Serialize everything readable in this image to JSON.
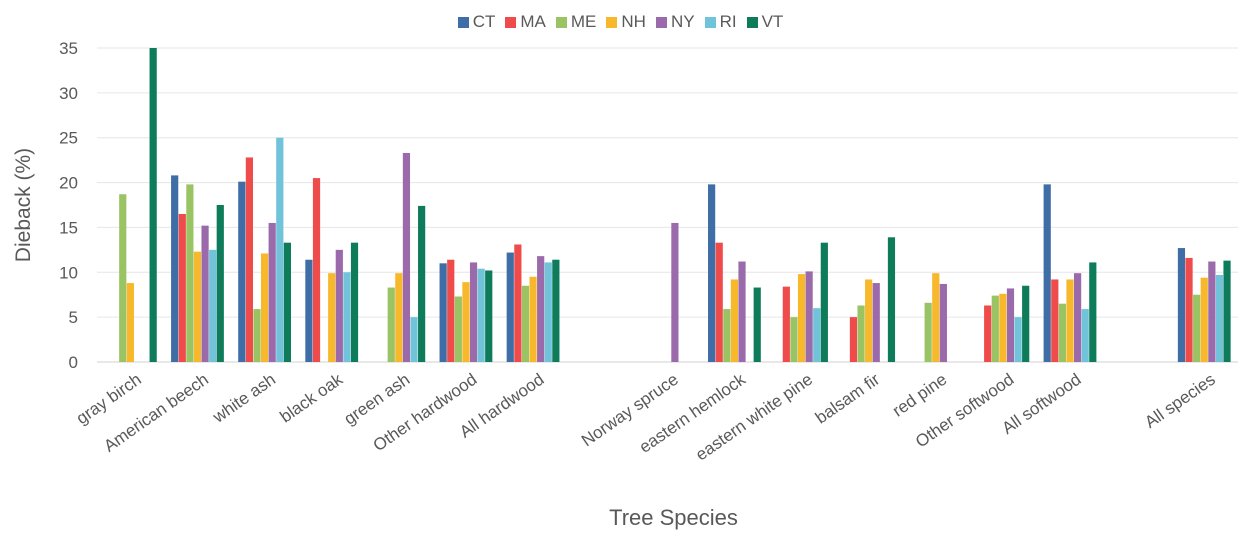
{
  "chart_data": {
    "type": "bar",
    "title": "",
    "xlabel": "Tree Species",
    "ylabel": "Dieback (%)",
    "ylim": [
      0,
      35
    ],
    "yticks": [
      "0",
      "5",
      "10",
      "15",
      "20",
      "25",
      "30",
      "35"
    ],
    "grid": true,
    "legend_position": "top",
    "categories": [
      "gray birch",
      "American beech",
      "white ash",
      "black oak",
      "green ash",
      "Other hardwood",
      "All hardwood",
      "",
      "Norway spruce",
      "eastern hemlock",
      "eastern white pine",
      "balsam fir",
      "red pine",
      "Other softwood",
      "All softwood",
      "",
      "All species"
    ],
    "series": [
      {
        "name": "CT",
        "color": "#3e6ea5",
        "values": [
          null,
          20.8,
          20.1,
          11.4,
          null,
          11.0,
          12.2,
          null,
          null,
          19.8,
          null,
          null,
          null,
          null,
          19.8,
          null,
          12.7
        ]
      },
      {
        "name": "MA",
        "color": "#ef4b4b",
        "values": [
          null,
          16.5,
          22.8,
          20.5,
          null,
          11.4,
          13.1,
          null,
          null,
          13.3,
          8.4,
          5.0,
          null,
          6.3,
          9.2,
          null,
          11.6
        ]
      },
      {
        "name": "ME",
        "color": "#9ac464",
        "values": [
          18.7,
          19.8,
          5.9,
          null,
          8.3,
          7.3,
          8.5,
          null,
          null,
          5.9,
          5.0,
          6.3,
          6.6,
          7.4,
          6.5,
          null,
          7.5
        ]
      },
      {
        "name": "NH",
        "color": "#f7b82c",
        "values": [
          8.8,
          12.3,
          12.1,
          9.9,
          9.9,
          8.9,
          9.5,
          null,
          null,
          9.2,
          9.8,
          9.2,
          9.9,
          7.6,
          9.2,
          null,
          9.4
        ]
      },
      {
        "name": "NY",
        "color": "#9b6aab",
        "values": [
          null,
          15.2,
          15.5,
          12.5,
          23.3,
          11.1,
          11.8,
          null,
          15.5,
          11.2,
          10.1,
          8.8,
          8.7,
          8.2,
          9.9,
          null,
          11.2
        ]
      },
      {
        "name": "RI",
        "color": "#71c3da",
        "values": [
          null,
          12.5,
          25.0,
          10.0,
          5.0,
          10.4,
          11.1,
          null,
          null,
          null,
          6.0,
          null,
          null,
          5.0,
          5.9,
          null,
          9.7
        ]
      },
      {
        "name": "VT",
        "color": "#0e7c5a",
        "values": [
          35.0,
          17.5,
          13.3,
          13.3,
          17.4,
          10.2,
          11.4,
          null,
          null,
          8.3,
          13.3,
          13.9,
          null,
          8.5,
          11.1,
          null,
          11.3
        ]
      }
    ]
  }
}
